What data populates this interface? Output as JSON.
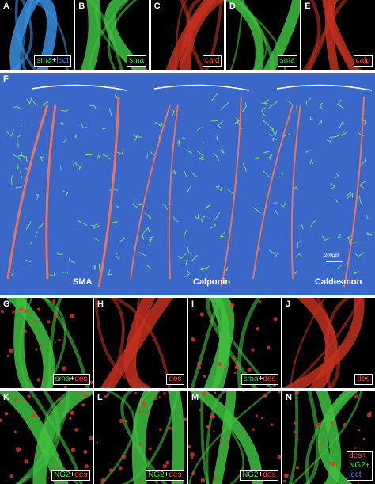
{
  "panels_top": [
    {
      "letter": "A",
      "label": [
        "sma",
        "+",
        "lect"
      ]
    },
    {
      "letter": "B",
      "label": [
        "sma"
      ]
    },
    {
      "letter": "C",
      "label": [
        "cald"
      ]
    },
    {
      "letter": "D",
      "label": [
        "sma"
      ]
    },
    {
      "letter": "E",
      "label": [
        "calp"
      ]
    }
  ],
  "panel_f": {
    "letter": "F",
    "captions": [
      "SMA",
      "Calponin",
      "Caldesmon"
    ],
    "scale_bar": "200µm"
  },
  "panels_mid": [
    {
      "letter": "G",
      "label": [
        "sma",
        "+",
        "des"
      ]
    },
    {
      "letter": "H",
      "label": [
        "des"
      ]
    },
    {
      "letter": "I",
      "label": [
        "sma",
        "+",
        "des"
      ]
    },
    {
      "letter": "J",
      "label": [
        "des"
      ]
    }
  ],
  "panels_bottom": [
    {
      "letter": "K",
      "label": [
        "NG2",
        "+",
        "des"
      ]
    },
    {
      "letter": "L",
      "label": [
        "NG2",
        "+",
        "des"
      ]
    },
    {
      "letter": "M",
      "label": [
        "NG2",
        "+",
        "des"
      ]
    },
    {
      "letter": "N",
      "label": [
        "des+",
        "NG2+",
        "lect"
      ]
    }
  ]
}
